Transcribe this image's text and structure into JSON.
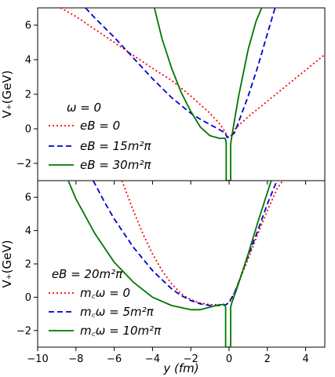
{
  "chart_data": [
    {
      "type": "line",
      "xlabel": "",
      "ylabel": "V₊(GeV)",
      "xlim": [
        -10,
        5
      ],
      "ylim": [
        -3,
        7
      ],
      "yticks": [
        -2,
        0,
        2,
        4,
        6
      ],
      "ytick_labels": [
        "−2",
        "0",
        "2",
        "4",
        "6"
      ],
      "legend": {
        "title": "ω = 0",
        "placement": "center-left"
      },
      "series": [
        {
          "name": "eB = 0",
          "color": "#ff0000",
          "style": "dotted",
          "x": [
            -8.8,
            -8,
            -6,
            -4,
            -3,
            -2,
            -1.5,
            -1,
            -0.5,
            -0.25,
            -0.1,
            0.1,
            0.25,
            0.5,
            1,
            2,
            3,
            4,
            5
          ],
          "y": [
            7,
            6.5,
            5.0,
            3.5,
            2.8,
            1.9,
            1.4,
            0.9,
            0.3,
            -0.1,
            -0.45,
            -0.4,
            -0.1,
            0.2,
            0.7,
            1.6,
            2.5,
            3.4,
            4.3
          ]
        },
        {
          "name": "eB = 15m²π",
          "color": "#0000cc",
          "style": "dashed",
          "x": [
            -7.5,
            -7,
            -6,
            -5,
            -4,
            -3,
            -2,
            -1.5,
            -1,
            -0.5,
            -0.2,
            -0.1,
            0.1,
            0.3,
            0.5,
            1,
            1.5,
            2,
            2.4
          ],
          "y": [
            7,
            6.4,
            5.3,
            4.1,
            2.9,
            1.8,
            0.9,
            0.55,
            0.25,
            -0.05,
            -0.25,
            -0.5,
            -0.45,
            -0.2,
            0.4,
            1.9,
            3.6,
            5.5,
            7
          ]
        },
        {
          "name": "eB = 30m²π",
          "color": "#007700",
          "style": "solid",
          "x": [
            -3.9,
            -3.5,
            -3,
            -2.5,
            -2,
            -1.5,
            -1,
            -0.5,
            -0.2,
            -0.15,
            -0.15,
            -0.12,
            0.08,
            0.08,
            0.12,
            0.3,
            0.5,
            1,
            1.4,
            1.7
          ],
          "y": [
            7,
            5.2,
            3.5,
            2.1,
            1.0,
            0.1,
            -0.4,
            -0.55,
            -0.55,
            -0.8,
            -3,
            -3,
            -3,
            -0.9,
            -0.6,
            0.6,
            1.9,
            4.6,
            6.2,
            7
          ]
        }
      ]
    },
    {
      "type": "line",
      "xlabel": "y (fm)",
      "ylabel": "V₊(GeV)",
      "xlim": [
        -10,
        5
      ],
      "ylim": [
        -3,
        7
      ],
      "xticks": [
        -10,
        -8,
        -6,
        -4,
        -2,
        0,
        2,
        4
      ],
      "xtick_labels": [
        "−10",
        "−8",
        "−6",
        "−4",
        "−2",
        "0",
        "2",
        "4"
      ],
      "yticks": [
        -2,
        0,
        2,
        4,
        6
      ],
      "ytick_labels": [
        "−2",
        "0",
        "2",
        "4",
        "6"
      ],
      "legend": {
        "title": "eB = 20m²π",
        "placement": "center-left"
      },
      "series": [
        {
          "name": "m꜀ω = 0",
          "color": "#ff0000",
          "style": "dotted",
          "x": [
            -5.6,
            -5,
            -4.5,
            -4,
            -3.5,
            -3,
            -2.5,
            -2,
            -1.5,
            -1,
            -0.5,
            -0.1,
            0.1,
            0.5,
            1,
            1.5,
            2,
            2.5,
            2.8
          ],
          "y": [
            7,
            5.2,
            3.8,
            2.6,
            1.6,
            0.8,
            0.2,
            -0.15,
            -0.35,
            -0.45,
            -0.45,
            -0.4,
            -0.2,
            0.9,
            2.3,
            3.8,
            5.2,
            6.5,
            7
          ]
        },
        {
          "name": "m꜀ω = 5m²π",
          "color": "#0000cc",
          "style": "dashed",
          "x": [
            -7.1,
            -6.5,
            -6,
            -5,
            -4,
            -3,
            -2.5,
            -2,
            -1.5,
            -1,
            -0.5,
            -0.15,
            0,
            0.3,
            0.5,
            1,
            1.5,
            2,
            2.5
          ],
          "y": [
            7,
            5.7,
            4.7,
            3.0,
            1.6,
            0.5,
            0.1,
            -0.2,
            -0.4,
            -0.5,
            -0.5,
            -0.45,
            -0.3,
            0.3,
            0.9,
            2.5,
            4.0,
            5.6,
            7
          ]
        },
        {
          "name": "m꜀ω = 10m²π",
          "color": "#007700",
          "style": "solid",
          "x": [
            -8.4,
            -8,
            -7,
            -6,
            -5,
            -4,
            -3,
            -2,
            -1.5,
            -1,
            -0.5,
            -0.25,
            -0.18,
            -0.18,
            -0.12,
            0.08,
            0.08,
            0.15,
            0.4,
            1,
            1.5,
            2.2
          ],
          "y": [
            7,
            5.9,
            3.8,
            2.1,
            0.9,
            0.0,
            -0.5,
            -0.75,
            -0.75,
            -0.6,
            -0.45,
            -0.45,
            -0.6,
            -3,
            -3,
            -3,
            -0.6,
            -0.3,
            0.5,
            2.6,
            4.5,
            7
          ]
        }
      ]
    }
  ]
}
